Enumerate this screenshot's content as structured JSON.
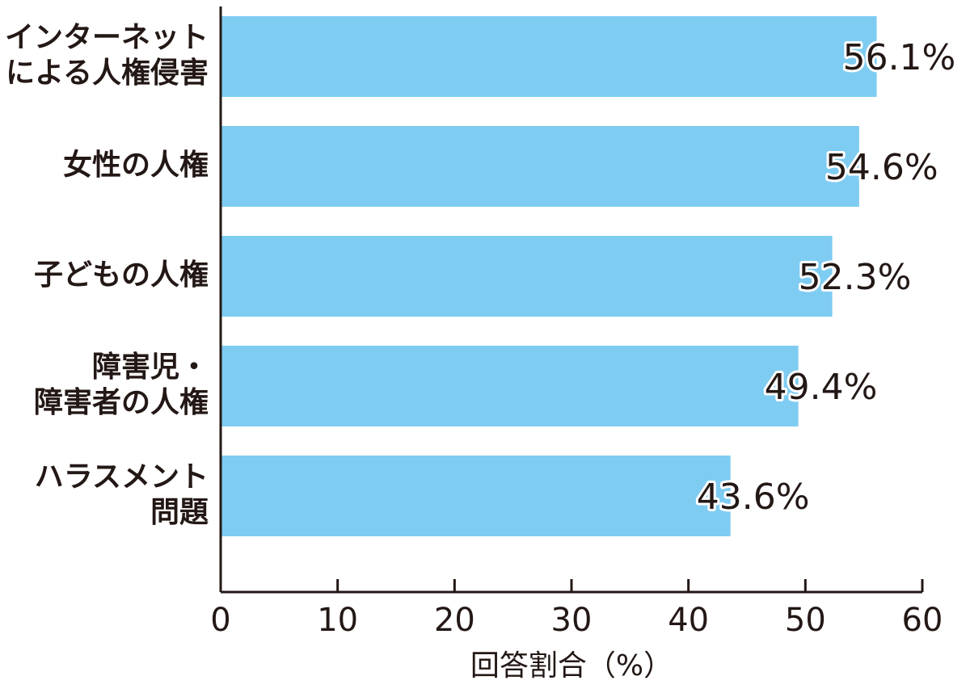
{
  "chart_data": {
    "type": "bar",
    "orientation": "horizontal",
    "categories": [
      "インターネット\nによる人権侵害",
      "女性の人権",
      "子どもの人権",
      "障害児・\n障害者の人権",
      "ハラスメント\n問題"
    ],
    "values": [
      56.1,
      54.6,
      52.3,
      49.4,
      43.6
    ],
    "value_labels": [
      "56.1%",
      "54.6%",
      "52.3%",
      "49.4%",
      "43.6%"
    ],
    "color": "#7fccf2",
    "xlim": [
      0,
      60
    ],
    "xticks": [
      0,
      10,
      20,
      30,
      40,
      50,
      60
    ],
    "xlabel": "回答割合（%）"
  }
}
